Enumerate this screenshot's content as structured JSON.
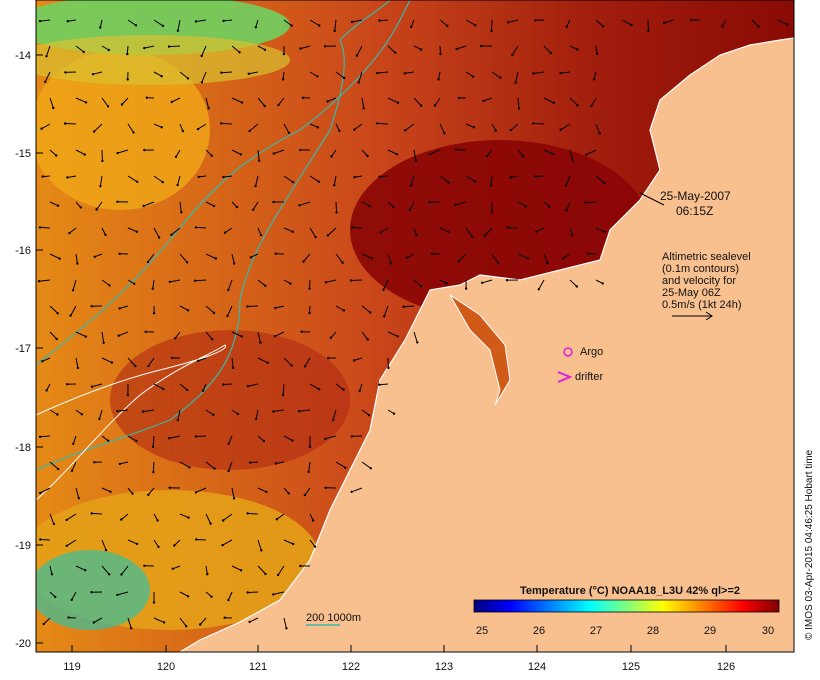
{
  "map": {
    "colors": {
      "land": "#f9c08f",
      "coast": "#ffffff",
      "contour": "#39b8a8",
      "arrows": "#000000",
      "argo": "#e01ee0",
      "drifter": "#e01ee0"
    },
    "lon_ticks": [
      "119",
      "120",
      "121",
      "122",
      "123",
      "124",
      "125",
      "126"
    ],
    "lat_ticks": [
      "-14",
      "-15",
      "-16",
      "-17",
      "-18",
      "-19",
      "-20"
    ]
  },
  "annotations": {
    "date": "25-May-2007",
    "time": "06:15Z",
    "altimetry_lines": [
      "Altimetric sealevel",
      "(0.1m contours)",
      "and velocity for",
      "25-May 06Z",
      "0.5m/s (1kt 24h)"
    ],
    "argo_label": "Argo",
    "drifter_label": "drifter",
    "bathymetry_legend": "200  1000m"
  },
  "colorbar": {
    "title": "Temperature (°C) NOAA18_L3U 42% ql>=2",
    "ticks": [
      "25",
      "26",
      "27",
      "28",
      "29",
      "30"
    ],
    "stops": [
      "#00007f",
      "#0000ff",
      "#007fff",
      "#00ffff",
      "#7fff7f",
      "#ffff00",
      "#ff7f00",
      "#ff0000",
      "#7f0000"
    ]
  },
  "credit": "© IMOS 03-Apr-2015 04:46:25 Hobart time"
}
